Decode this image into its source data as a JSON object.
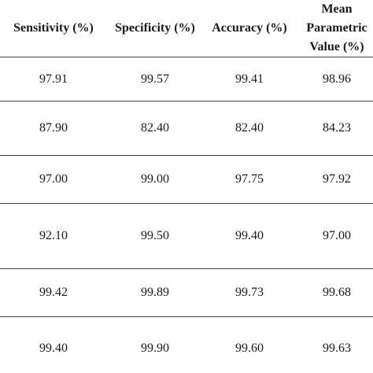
{
  "table": {
    "headers": [
      "Sensitivity (%)",
      "Specificity (%)",
      "Accuracy (%)",
      "Mean Parametric Value (%)"
    ],
    "rows": [
      [
        "97.91",
        "99.57",
        "99.41",
        "98.96"
      ],
      [
        "87.90",
        "82.40",
        "82.40",
        "84.23"
      ],
      [
        "97.00",
        "99.00",
        "97.75",
        "97.92"
      ],
      [
        "92.10",
        "99.50",
        "99.40",
        "97.00"
      ],
      [
        "99.42",
        "99.89",
        "99.73",
        "99.68"
      ],
      [
        "99.40",
        "99.90",
        "99.60",
        "99.63"
      ]
    ]
  }
}
